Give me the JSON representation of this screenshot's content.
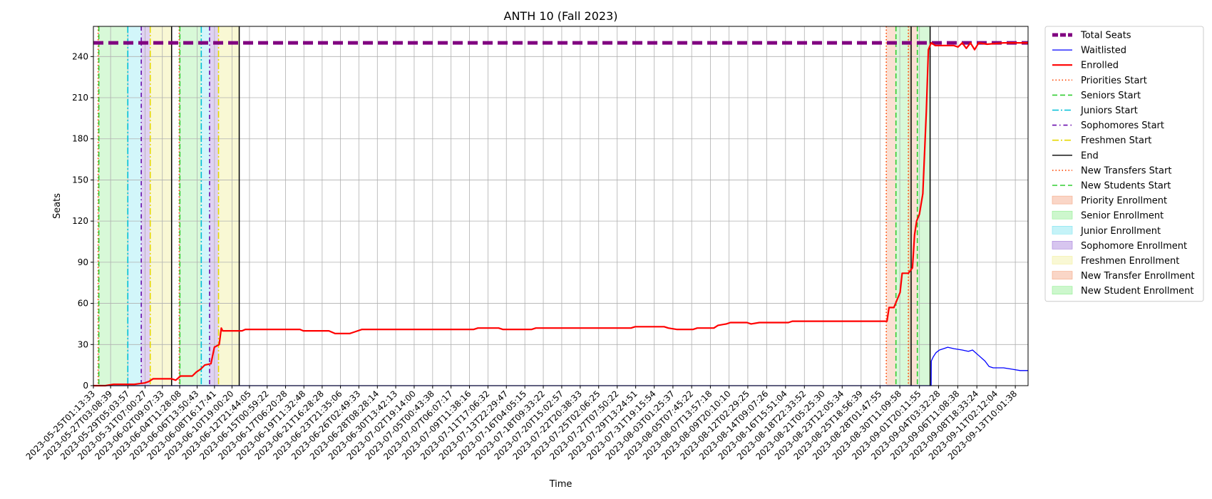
{
  "chart_data": {
    "type": "line",
    "title": "ANTH 10 (Fall 2023)",
    "xlabel": "Time",
    "ylabel": "Seats",
    "ylim": [
      0,
      262
    ],
    "yticks": [
      0,
      30,
      60,
      90,
      120,
      150,
      180,
      210,
      240
    ],
    "grid": true,
    "legend_position": "outside-right",
    "xrange": [
      "2023-05-25T01:13:33",
      "2023-09-14T23:00:00"
    ],
    "xticks": [
      "2023-05-25T01:13:33",
      "2023-05-27T03:08:39",
      "2023-05-29T05:03:57",
      "2023-05-31T07:00:27",
      "2023-06-02T09:07:33",
      "2023-06-04T11:28:08",
      "2023-06-06T13:50:43",
      "2023-06-08T16:17:41",
      "2023-06-10T19:00:20",
      "2023-06-12T21:44:05",
      "2023-06-15T00:59:22",
      "2023-06-17T06:20:28",
      "2023-06-19T11:32:48",
      "2023-06-21T16:28:28",
      "2023-06-23T21:35:06",
      "2023-06-26T02:49:33",
      "2023-06-28T08:28:14",
      "2023-06-30T13:42:13",
      "2023-07-02T19:14:00",
      "2023-07-05T00:43:38",
      "2023-07-07T06:07:17",
      "2023-07-09T11:38:16",
      "2023-07-11T17:06:32",
      "2023-07-13T22:29:47",
      "2023-07-16T04:05:15",
      "2023-07-18T09:33:22",
      "2023-07-20T15:02:57",
      "2023-07-22T20:38:33",
      "2023-07-25T02:06:25",
      "2023-07-27T07:50:22",
      "2023-07-29T13:24:51",
      "2023-07-31T19:15:54",
      "2023-08-03T01:25:37",
      "2023-08-05T07:45:22",
      "2023-08-07T13:57:18",
      "2023-08-09T20:10:10",
      "2023-08-12T02:29:25",
      "2023-08-14T09:07:26",
      "2023-08-16T15:51:04",
      "2023-08-18T22:33:52",
      "2023-08-21T05:25:30",
      "2023-08-23T12:05:34",
      "2023-08-25T18:56:39",
      "2023-08-28T01:47:55",
      "2023-08-30T11:09:58",
      "2023-09-01T20:11:55",
      "2023-09-04T03:32:28",
      "2023-09-06T11:08:38",
      "2023-09-08T18:33:24",
      "2023-09-11T02:12:04",
      "2023-09-13T10:01:38"
    ],
    "series": [
      {
        "name": "Total Seats",
        "color": "#800080",
        "style": "dashed-thick",
        "points": [
          [
            "2023-05-25T01:13:33",
            250
          ],
          [
            "2023-09-14T23:00:00",
            250
          ]
        ]
      },
      {
        "name": "Waitlisted",
        "color": "#0000ff",
        "style": "solid",
        "points": [
          [
            "2023-05-25T01:13:33",
            0
          ],
          [
            "2023-09-03T06:00:00",
            0
          ],
          [
            "2023-09-03T06:30:00",
            18
          ],
          [
            "2023-09-03T12:00:00",
            21
          ],
          [
            "2023-09-03T20:00:00",
            24
          ],
          [
            "2023-09-04T06:00:00",
            26
          ],
          [
            "2023-09-04T18:00:00",
            27
          ],
          [
            "2023-09-05T06:00:00",
            28
          ],
          [
            "2023-09-06T00:00:00",
            27
          ],
          [
            "2023-09-07T00:00:00",
            26
          ],
          [
            "2023-09-07T18:00:00",
            25
          ],
          [
            "2023-09-08T06:00:00",
            26
          ],
          [
            "2023-09-09T00:00:00",
            22
          ],
          [
            "2023-09-09T18:00:00",
            18
          ],
          [
            "2023-09-10T06:00:00",
            14
          ],
          [
            "2023-09-10T18:00:00",
            13
          ],
          [
            "2023-09-12T00:00:00",
            13
          ],
          [
            "2023-09-13T00:00:00",
            12
          ],
          [
            "2023-09-14T00:00:00",
            11
          ],
          [
            "2023-09-14T23:00:00",
            11
          ]
        ]
      },
      {
        "name": "Enrolled",
        "color": "#ff0000",
        "style": "solid-thick",
        "points": [
          [
            "2023-05-25T01:13:33",
            0
          ],
          [
            "2023-05-26T12:00:00",
            0
          ],
          [
            "2023-05-27T12:00:00",
            1
          ],
          [
            "2023-05-30T00:00:00",
            1
          ],
          [
            "2023-05-31T06:00:00",
            2
          ],
          [
            "2023-05-31T18:00:00",
            3
          ],
          [
            "2023-06-01T06:00:00",
            5
          ],
          [
            "2023-06-03T12:00:00",
            5
          ],
          [
            "2023-06-04T00:00:00",
            4
          ],
          [
            "2023-06-04T14:00:00",
            7
          ],
          [
            "2023-06-06T00:00:00",
            7
          ],
          [
            "2023-06-06T12:00:00",
            10
          ],
          [
            "2023-06-07T00:00:00",
            12
          ],
          [
            "2023-06-07T12:00:00",
            15
          ],
          [
            "2023-06-08T06:00:00",
            16
          ],
          [
            "2023-06-08T16:00:00",
            28
          ],
          [
            "2023-06-09T06:00:00",
            30
          ],
          [
            "2023-06-09T12:00:00",
            42
          ],
          [
            "2023-06-09T16:00:00",
            40
          ],
          [
            "2023-06-12T00:00:00",
            40
          ],
          [
            "2023-06-12T10:00:00",
            41
          ],
          [
            "2023-06-19T00:00:00",
            41
          ],
          [
            "2023-06-19T10:00:00",
            40
          ],
          [
            "2023-06-22T12:00:00",
            40
          ],
          [
            "2023-06-23T06:00:00",
            38
          ],
          [
            "2023-06-25T00:00:00",
            38
          ],
          [
            "2023-06-25T12:00:00",
            39
          ],
          [
            "2023-06-26T12:00:00",
            41
          ],
          [
            "2023-07-10T00:00:00",
            41
          ],
          [
            "2023-07-10T12:00:00",
            42
          ],
          [
            "2023-07-13T00:00:00",
            42
          ],
          [
            "2023-07-13T12:00:00",
            41
          ],
          [
            "2023-07-17T00:00:00",
            41
          ],
          [
            "2023-07-17T12:00:00",
            42
          ],
          [
            "2023-07-29T00:00:00",
            42
          ],
          [
            "2023-07-29T12:00:00",
            43
          ],
          [
            "2023-08-02T00:00:00",
            43
          ],
          [
            "2023-08-02T12:00:00",
            42
          ],
          [
            "2023-08-03T12:00:00",
            41
          ],
          [
            "2023-08-05T12:00:00",
            41
          ],
          [
            "2023-08-06T00:00:00",
            42
          ],
          [
            "2023-08-08T00:00:00",
            42
          ],
          [
            "2023-08-08T12:00:00",
            44
          ],
          [
            "2023-08-09T12:00:00",
            45
          ],
          [
            "2023-08-10T00:00:00",
            46
          ],
          [
            "2023-08-12T00:00:00",
            46
          ],
          [
            "2023-08-12T12:00:00",
            45
          ],
          [
            "2023-08-13T12:00:00",
            46
          ],
          [
            "2023-08-17T00:00:00",
            46
          ],
          [
            "2023-08-17T12:00:00",
            47
          ],
          [
            "2023-08-28T22:00:00",
            47
          ],
          [
            "2023-08-29T04:00:00",
            57
          ],
          [
            "2023-08-29T18:00:00",
            57
          ],
          [
            "2023-08-30T12:00:00",
            68
          ],
          [
            "2023-08-30T18:00:00",
            82
          ],
          [
            "2023-08-31T12:00:00",
            82
          ],
          [
            "2023-09-01T00:00:00",
            86
          ],
          [
            "2023-09-01T06:00:00",
            110
          ],
          [
            "2023-09-01T12:00:00",
            120
          ],
          [
            "2023-09-01T20:00:00",
            125
          ],
          [
            "2023-09-02T06:00:00",
            140
          ],
          [
            "2023-09-02T16:00:00",
            200
          ],
          [
            "2023-09-02T22:00:00",
            245
          ],
          [
            "2023-09-03T06:00:00",
            250
          ],
          [
            "2023-09-03T18:00:00",
            248
          ],
          [
            "2023-09-06T00:00:00",
            248
          ],
          [
            "2023-09-06T12:00:00",
            247
          ],
          [
            "2023-09-07T00:00:00",
            250
          ],
          [
            "2023-09-07T12:00:00",
            246
          ],
          [
            "2023-09-08T00:00:00",
            250
          ],
          [
            "2023-09-08T12:00:00",
            245
          ],
          [
            "2023-09-09T00:00:00",
            250
          ],
          [
            "2023-09-10T00:00:00",
            249
          ],
          [
            "2023-09-12T00:00:00",
            250
          ],
          [
            "2023-09-14T23:00:00",
            250
          ]
        ]
      }
    ],
    "vlines": [
      {
        "name": "Priorities Start",
        "color": "#ff4500",
        "style": "dotted",
        "dates": [
          "2023-05-25T15:00:00",
          "2023-06-04T10:00:00",
          "2023-08-28T20:00:00"
        ]
      },
      {
        "name": "Seniors Start",
        "color": "#32cd32",
        "style": "dashed",
        "dates": [
          "2023-05-25T17:00:00",
          "2023-06-04T12:00:00",
          "2023-08-30T00:00:00"
        ]
      },
      {
        "name": "Juniors Start",
        "color": "#00bfd8",
        "style": "dashdot",
        "dates": [
          "2023-05-29T05:00:00",
          "2023-06-07T02:00:00"
        ]
      },
      {
        "name": "Sophomores Start",
        "color": "#6a0dad",
        "style": "dashdot2",
        "dates": [
          "2023-05-30T20:00:00",
          "2023-06-08T02:00:00"
        ]
      },
      {
        "name": "Freshmen Start",
        "color": "#e6d800",
        "style": "dashdot",
        "dates": [
          "2023-05-31T22:00:00",
          "2023-06-09T04:00:00"
        ]
      },
      {
        "name": "End",
        "color": "#000000",
        "style": "solid",
        "dates": [
          "2023-06-03T12:00:00",
          "2023-06-11T16:00:00",
          "2023-08-31T20:00:00",
          "2023-09-03T03:00:00"
        ]
      },
      {
        "name": "New Transfers Start",
        "color": "#ff4500",
        "style": "dotted",
        "dates": [
          "2023-08-31T12:00:00"
        ]
      },
      {
        "name": "New Students Start",
        "color": "#32cd32",
        "style": "dashed",
        "dates": [
          "2023-09-01T14:00:00"
        ]
      }
    ],
    "spans": [
      {
        "name": "Priority Enrollment",
        "color": "#f4a582",
        "opacity": 0.35,
        "ranges": [
          [
            "2023-05-25T15:00:00",
            "2023-05-25T17:00:00"
          ],
          [
            "2023-06-04T10:00:00",
            "2023-06-04T12:00:00"
          ],
          [
            "2023-08-28T20:00:00",
            "2023-08-30T00:00:00"
          ]
        ]
      },
      {
        "name": "Senior Enrollment",
        "color": "#90ee90",
        "opacity": 0.35,
        "ranges": [
          [
            "2023-05-25T17:00:00",
            "2023-05-29T05:00:00"
          ],
          [
            "2023-06-04T12:00:00",
            "2023-06-07T02:00:00"
          ],
          [
            "2023-08-30T00:00:00",
            "2023-08-31T20:00:00"
          ]
        ]
      },
      {
        "name": "Junior Enrollment",
        "color": "#7fe5f0",
        "opacity": 0.35,
        "ranges": [
          [
            "2023-05-29T05:00:00",
            "2023-05-30T20:00:00"
          ],
          [
            "2023-06-07T02:00:00",
            "2023-06-08T02:00:00"
          ]
        ]
      },
      {
        "name": "Sophomore Enrollment",
        "color": "#a77fdb",
        "opacity": 0.35,
        "ranges": [
          [
            "2023-05-30T20:00:00",
            "2023-05-31T22:00:00"
          ],
          [
            "2023-06-08T02:00:00",
            "2023-06-09T04:00:00"
          ]
        ]
      },
      {
        "name": "Freshmen Enrollment",
        "color": "#f2f0a0",
        "opacity": 0.45,
        "ranges": [
          [
            "2023-05-31T22:00:00",
            "2023-06-03T12:00:00"
          ],
          [
            "2023-06-09T04:00:00",
            "2023-06-11T16:00:00"
          ]
        ]
      },
      {
        "name": "New Transfer Enrollment",
        "color": "#f4a582",
        "opacity": 0.35,
        "ranges": [
          [
            "2023-08-31T12:00:00",
            "2023-09-01T14:00:00"
          ]
        ]
      },
      {
        "name": "New Student Enrollment",
        "color": "#90ee90",
        "opacity": 0.35,
        "ranges": [
          [
            "2023-09-01T14:00:00",
            "2023-09-03T03:00:00"
          ]
        ]
      }
    ],
    "legend": [
      {
        "label": "Total Seats",
        "kind": "line",
        "color": "#800080",
        "style": "dashed-thick"
      },
      {
        "label": "Waitlisted",
        "kind": "line",
        "color": "#0000ff",
        "style": "solid"
      },
      {
        "label": "Enrolled",
        "kind": "line",
        "color": "#ff0000",
        "style": "solid-thick"
      },
      {
        "label": "Priorities Start",
        "kind": "line",
        "color": "#ff4500",
        "style": "dotted"
      },
      {
        "label": "Seniors Start",
        "kind": "line",
        "color": "#32cd32",
        "style": "dashed"
      },
      {
        "label": "Juniors Start",
        "kind": "line",
        "color": "#00bfd8",
        "style": "dashdot"
      },
      {
        "label": "Sophomores Start",
        "kind": "line",
        "color": "#6a0dad",
        "style": "dashdot2"
      },
      {
        "label": "Freshmen Start",
        "kind": "line",
        "color": "#e6d800",
        "style": "dashdot"
      },
      {
        "label": "End",
        "kind": "line",
        "color": "#000000",
        "style": "solid"
      },
      {
        "label": "New Transfers Start",
        "kind": "line",
        "color": "#ff4500",
        "style": "dotted"
      },
      {
        "label": "New Students Start",
        "kind": "line",
        "color": "#32cd32",
        "style": "dashed"
      },
      {
        "label": "Priority Enrollment",
        "kind": "patch",
        "color": "#f4a582"
      },
      {
        "label": "Senior Enrollment",
        "kind": "patch",
        "color": "#90ee90"
      },
      {
        "label": "Junior Enrollment",
        "kind": "patch",
        "color": "#7fe5f0"
      },
      {
        "label": "Sophomore Enrollment",
        "kind": "patch",
        "color": "#a77fdb"
      },
      {
        "label": "Freshmen Enrollment",
        "kind": "patch",
        "color": "#f2f0a0"
      },
      {
        "label": "New Transfer Enrollment",
        "kind": "patch",
        "color": "#f4a582"
      },
      {
        "label": "New Student Enrollment",
        "kind": "patch",
        "color": "#90ee90"
      }
    ]
  }
}
